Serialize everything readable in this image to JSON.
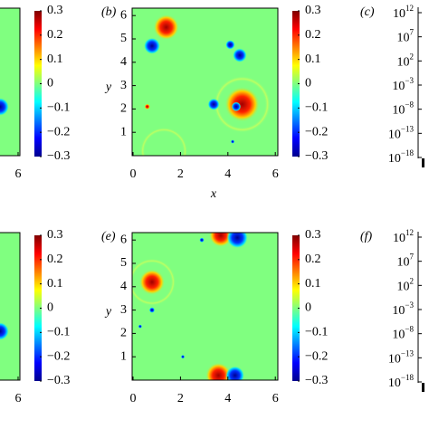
{
  "panels": [
    {
      "kind": "cropped",
      "xticks": [
        6
      ],
      "colorbar_ticks": [
        0.3,
        0.2,
        0.1,
        0,
        {
          "value": -0.1,
          "label": "−0.1"
        },
        {
          "value": -0.2,
          "label": "−0.2"
        },
        {
          "value": -0.3,
          "label": "−0.3"
        }
      ]
    },
    {
      "kind": "field",
      "label": "(b)",
      "x_label": "x",
      "y_label": "y",
      "xticks": [
        0,
        2,
        4,
        6
      ],
      "yticks": [
        1,
        2,
        3,
        4,
        5,
        6
      ],
      "colorbar_ticks": [
        0.3,
        0.2,
        0.1,
        0,
        {
          "value": -0.1,
          "label": "−0.1"
        },
        {
          "value": -0.2,
          "label": "−0.2"
        },
        {
          "value": -0.3,
          "label": "−0.3"
        }
      ]
    },
    {
      "kind": "log",
      "label": "(c)",
      "log_ticks": [
        {
          "base": "10",
          "exp": "12"
        },
        {
          "base": "10",
          "exp": "7"
        },
        {
          "base": "10",
          "exp": "2"
        },
        {
          "base": "10",
          "exp": "−3"
        },
        {
          "base": "10",
          "exp": "−8"
        },
        {
          "base": "10",
          "exp": "−13"
        },
        {
          "base": "10",
          "exp": "−18"
        }
      ]
    },
    {
      "kind": "cropped",
      "xticks": [
        6
      ],
      "colorbar_ticks": [
        0.3,
        0.2,
        0.1,
        0,
        {
          "value": -0.1,
          "label": "−0.1"
        },
        {
          "value": -0.2,
          "label": "−0.2"
        },
        {
          "value": -0.3,
          "label": "−0.3"
        }
      ]
    },
    {
      "kind": "field",
      "label": "(e)",
      "y_label": "y",
      "xticks": [
        0,
        2,
        4,
        6
      ],
      "yticks": [
        1,
        2,
        3,
        4,
        5,
        6
      ],
      "colorbar_ticks": [
        0.3,
        0.2,
        0.1,
        0,
        {
          "value": -0.1,
          "label": "−0.1"
        },
        {
          "value": -0.2,
          "label": "−0.2"
        },
        {
          "value": -0.3,
          "label": "−0.3"
        }
      ]
    },
    {
      "kind": "log",
      "label": "(f)",
      "log_ticks": [
        {
          "base": "10",
          "exp": "12"
        },
        {
          "base": "10",
          "exp": "7"
        },
        {
          "base": "10",
          "exp": "2"
        },
        {
          "base": "10",
          "exp": "−3"
        },
        {
          "base": "10",
          "exp": "−8"
        },
        {
          "base": "10",
          "exp": "−13"
        },
        {
          "base": "10",
          "exp": "−18"
        }
      ]
    }
  ]
}
